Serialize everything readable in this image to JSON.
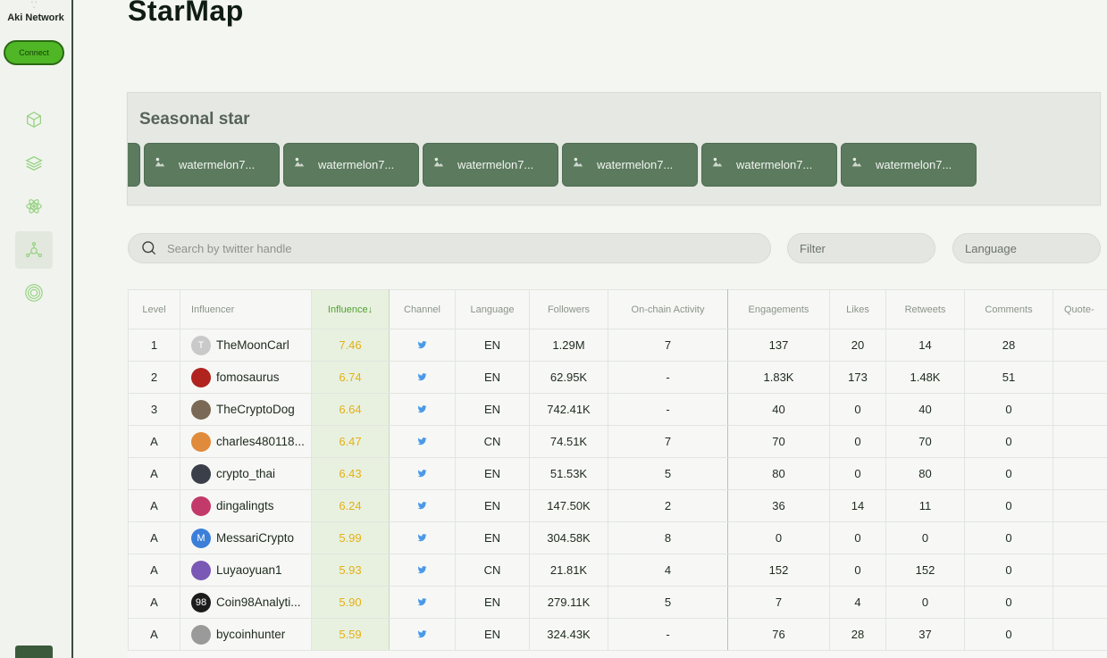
{
  "sidebar": {
    "brand": "Aki Network",
    "connect_label": "Connect",
    "nav": [
      {
        "icon": "cube-icon"
      },
      {
        "icon": "layers-icon"
      },
      {
        "icon": "atom-icon"
      },
      {
        "icon": "network-icon",
        "active": true
      },
      {
        "icon": "target-icon"
      }
    ]
  },
  "page": {
    "title": "StarMap"
  },
  "seasonal": {
    "title": "Seasonal star",
    "cards": [
      "watermelon7...",
      "watermelon7...",
      "watermelon7...",
      "watermelon7...",
      "watermelon7...",
      "watermelon7...",
      "watermelon7..."
    ]
  },
  "search": {
    "placeholder": "Search by twitter handle"
  },
  "filters": {
    "filter_label": "Filter",
    "language_label": "Language"
  },
  "table": {
    "headers": {
      "level": "Level",
      "influencer": "Influencer",
      "influence": "Influence↓",
      "channel": "Channel",
      "language": "Language",
      "followers": "Followers",
      "onchain": "On-chain Activity",
      "engagements": "Engagements",
      "likes": "Likes",
      "retweets": "Retweets",
      "comments": "Comments",
      "quotes": "Quote-"
    },
    "rows": [
      {
        "level": "1",
        "name": "TheMoonCarl",
        "avatar_letter": "T",
        "avatar_color": "#c9c9c9",
        "influence": "7.46",
        "language": "EN",
        "followers": "1.29M",
        "onchain": "7",
        "engagements": "137",
        "likes": "20",
        "retweets": "14",
        "comments": "28"
      },
      {
        "level": "2",
        "name": "fomosaurus",
        "avatar_letter": "",
        "avatar_color": "#b0231f",
        "influence": "6.74",
        "language": "EN",
        "followers": "62.95K",
        "onchain": "-",
        "engagements": "1.83K",
        "likes": "173",
        "retweets": "1.48K",
        "comments": "51"
      },
      {
        "level": "3",
        "name": "TheCryptoDog",
        "avatar_letter": "",
        "avatar_color": "#7a6a55",
        "influence": "6.64",
        "language": "EN",
        "followers": "742.41K",
        "onchain": "-",
        "engagements": "40",
        "likes": "0",
        "retweets": "40",
        "comments": "0"
      },
      {
        "level": "A",
        "name": "charles480118...",
        "avatar_letter": "",
        "avatar_color": "#e08a3c",
        "influence": "6.47",
        "language": "CN",
        "followers": "74.51K",
        "onchain": "7",
        "engagements": "70",
        "likes": "0",
        "retweets": "70",
        "comments": "0"
      },
      {
        "level": "A",
        "name": "crypto_thai",
        "avatar_letter": "",
        "avatar_color": "#3a3f4a",
        "influence": "6.43",
        "language": "EN",
        "followers": "51.53K",
        "onchain": "5",
        "engagements": "80",
        "likes": "0",
        "retweets": "80",
        "comments": "0"
      },
      {
        "level": "A",
        "name": "dingalingts",
        "avatar_letter": "",
        "avatar_color": "#c23a6a",
        "influence": "6.24",
        "language": "EN",
        "followers": "147.50K",
        "onchain": "2",
        "engagements": "36",
        "likes": "14",
        "retweets": "11",
        "comments": "0"
      },
      {
        "level": "A",
        "name": "MessariCrypto",
        "avatar_letter": "M",
        "avatar_color": "#3b7fd9",
        "influence": "5.99",
        "language": "EN",
        "followers": "304.58K",
        "onchain": "8",
        "engagements": "0",
        "likes": "0",
        "retweets": "0",
        "comments": "0"
      },
      {
        "level": "A",
        "name": "Luyaoyuan1",
        "avatar_letter": "",
        "avatar_color": "#7a58b5",
        "influence": "5.93",
        "language": "CN",
        "followers": "21.81K",
        "onchain": "4",
        "engagements": "152",
        "likes": "0",
        "retweets": "152",
        "comments": "0"
      },
      {
        "level": "A",
        "name": "Coin98Analyti...",
        "avatar_letter": "98",
        "avatar_color": "#1c1c1c",
        "influence": "5.90",
        "language": "EN",
        "followers": "279.11K",
        "onchain": "5",
        "engagements": "7",
        "likes": "4",
        "retweets": "0",
        "comments": "0"
      },
      {
        "level": "A",
        "name": "bycoinhunter",
        "avatar_letter": "",
        "avatar_color": "#9a9a9a",
        "influence": "5.59",
        "language": "EN",
        "followers": "324.43K",
        "onchain": "-",
        "engagements": "76",
        "likes": "28",
        "retweets": "37",
        "comments": "0"
      }
    ]
  },
  "colors": {
    "accent_green": "#4fb626",
    "card_green": "#5b7a5e",
    "influence_yellow": "#e5b013",
    "twitter_blue": "#4a99e9"
  }
}
